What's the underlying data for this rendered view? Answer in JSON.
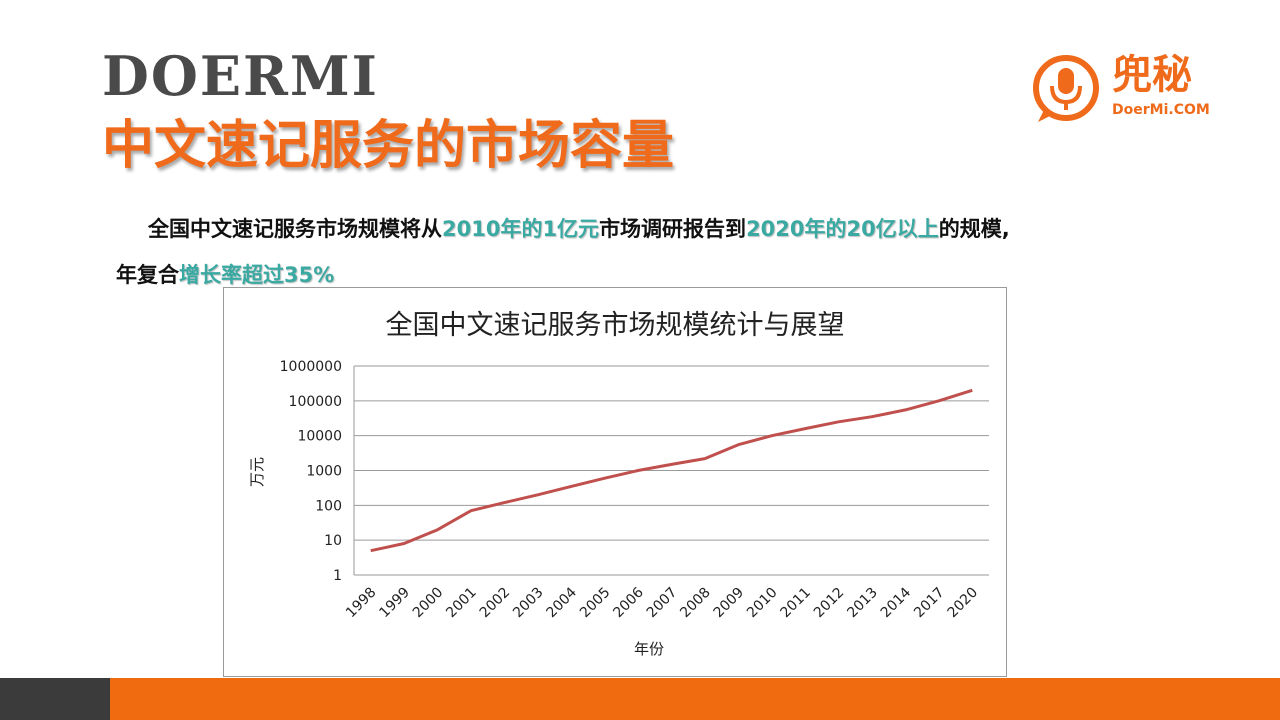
{
  "header": {
    "brand": "DOERMI",
    "title": "中文速记服务的市场容量"
  },
  "logo": {
    "name_cn": "兜秘",
    "name_en": "DoerMi.COM",
    "icon": "microphone-speech-bubble-icon",
    "color": "#ef6a1a"
  },
  "intro": {
    "line1_prefix": "全国中文速记服务市场规模将从",
    "line1_highlight1": "2010年的1亿元",
    "line1_middle": "市场调研报告到",
    "line1_highlight2": "2020年的20亿以上",
    "line1_suffix": "的规模,",
    "line2_prefix": "年复合",
    "line2_highlight": "增长率超过35%",
    "highlight_color": "#3aa9a2"
  },
  "chart_data": {
    "type": "line",
    "title": "全国中文速记服务市场规模统计与展望",
    "xlabel": "年份",
    "ylabel": "万元",
    "yscale": "log",
    "ylim": [
      1,
      1000000
    ],
    "yticks": [
      "1",
      "10",
      "100",
      "1000",
      "10000",
      "100000",
      "1000000"
    ],
    "categories": [
      "1998",
      "1999",
      "2000",
      "2001",
      "2002",
      "2003",
      "2004",
      "2005",
      "2006",
      "2007",
      "2008",
      "2009",
      "2010",
      "2011",
      "2012",
      "2013",
      "2014",
      "2017",
      "2020"
    ],
    "series": [
      {
        "color": "#c0504d",
        "values": [
          5,
          8,
          20,
          70,
          120,
          200,
          350,
          600,
          1000,
          1500,
          2200,
          5500,
          10000,
          16000,
          25000,
          35000,
          55000,
          100000,
          200000
        ]
      }
    ],
    "grid": true,
    "legend": "none"
  },
  "footer": {
    "dark_color": "#3b3b3b",
    "accent_color": "#f06a0f"
  }
}
